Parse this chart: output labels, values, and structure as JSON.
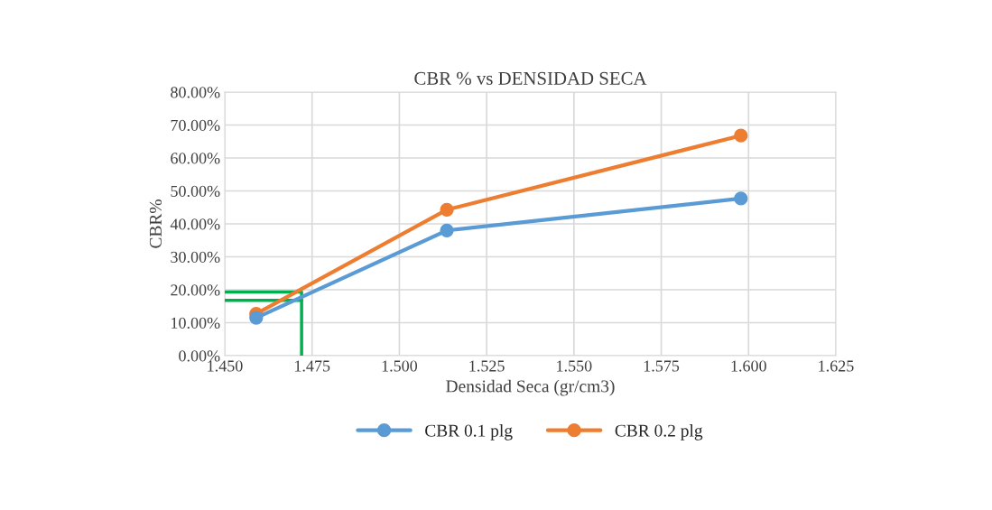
{
  "chart_data": {
    "type": "line",
    "title": "CBR % vs DENSIDAD SECA",
    "xlabel": "Densidad Seca (gr/cm3)",
    "ylabel": "CBR%",
    "series": [
      {
        "name": "CBR 0.1 plg",
        "color": "#5b9bd5",
        "x": [
          1.459,
          1.5136,
          1.5978
        ],
        "values": [
          11.5,
          38.0,
          47.7
        ],
        "marker": "circle"
      },
      {
        "name": "CBR 0.2 plg",
        "color": "#ed7d31",
        "x": [
          1.459,
          1.5136,
          1.5978
        ],
        "values": [
          12.7,
          44.3,
          66.8
        ],
        "marker": "circle"
      },
      {
        "color": "#00b050",
        "x": [
          1.45,
          1.472,
          1.472
        ],
        "values": [
          19.3,
          19.3,
          0
        ],
        "marker": "none"
      },
      {
        "color": "#00b050",
        "x": [
          1.45,
          1.472
        ],
        "values": [
          16.8,
          16.8
        ],
        "marker": "none"
      }
    ],
    "xlim": [
      1.45,
      1.625
    ],
    "xticks": [
      {
        "value": 1.45,
        "label": "1.450"
      },
      {
        "value": 1.475,
        "label": "1.475"
      },
      {
        "value": 1.5,
        "label": "1.500"
      },
      {
        "value": 1.525,
        "label": "1.525"
      },
      {
        "value": 1.55,
        "label": "1.550"
      },
      {
        "value": 1.575,
        "label": "1.575"
      },
      {
        "value": 1.6,
        "label": "1.600"
      },
      {
        "value": 1.625,
        "label": "1.625"
      }
    ],
    "ylim": [
      0,
      80
    ],
    "yticks": [
      {
        "value": 0,
        "label": "0.00%"
      },
      {
        "value": 10,
        "label": "10.00%"
      },
      {
        "value": 20,
        "label": "20.00%"
      },
      {
        "value": 30,
        "label": "30.00%"
      },
      {
        "value": 40,
        "label": "40.00%"
      },
      {
        "value": 50,
        "label": "50.00%"
      },
      {
        "value": 60,
        "label": "60.00%"
      },
      {
        "value": 70,
        "label": "70.00%"
      },
      {
        "value": 80,
        "label": "80.00%"
      }
    ],
    "grid": true,
    "legend": "bottom"
  }
}
